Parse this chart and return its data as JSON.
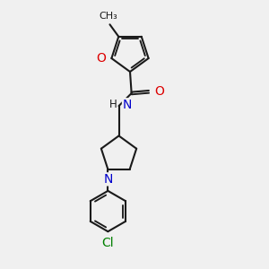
{
  "bg_color": "#f0f0f0",
  "line_color": "#1a1a1a",
  "O_color": "#dd0000",
  "N_color": "#0000cc",
  "Cl_color": "#008000",
  "lw": 1.5,
  "fs": 9.5,
  "xlim": [
    2.5,
    7.5
  ],
  "ylim": [
    0.5,
    9.5
  ]
}
